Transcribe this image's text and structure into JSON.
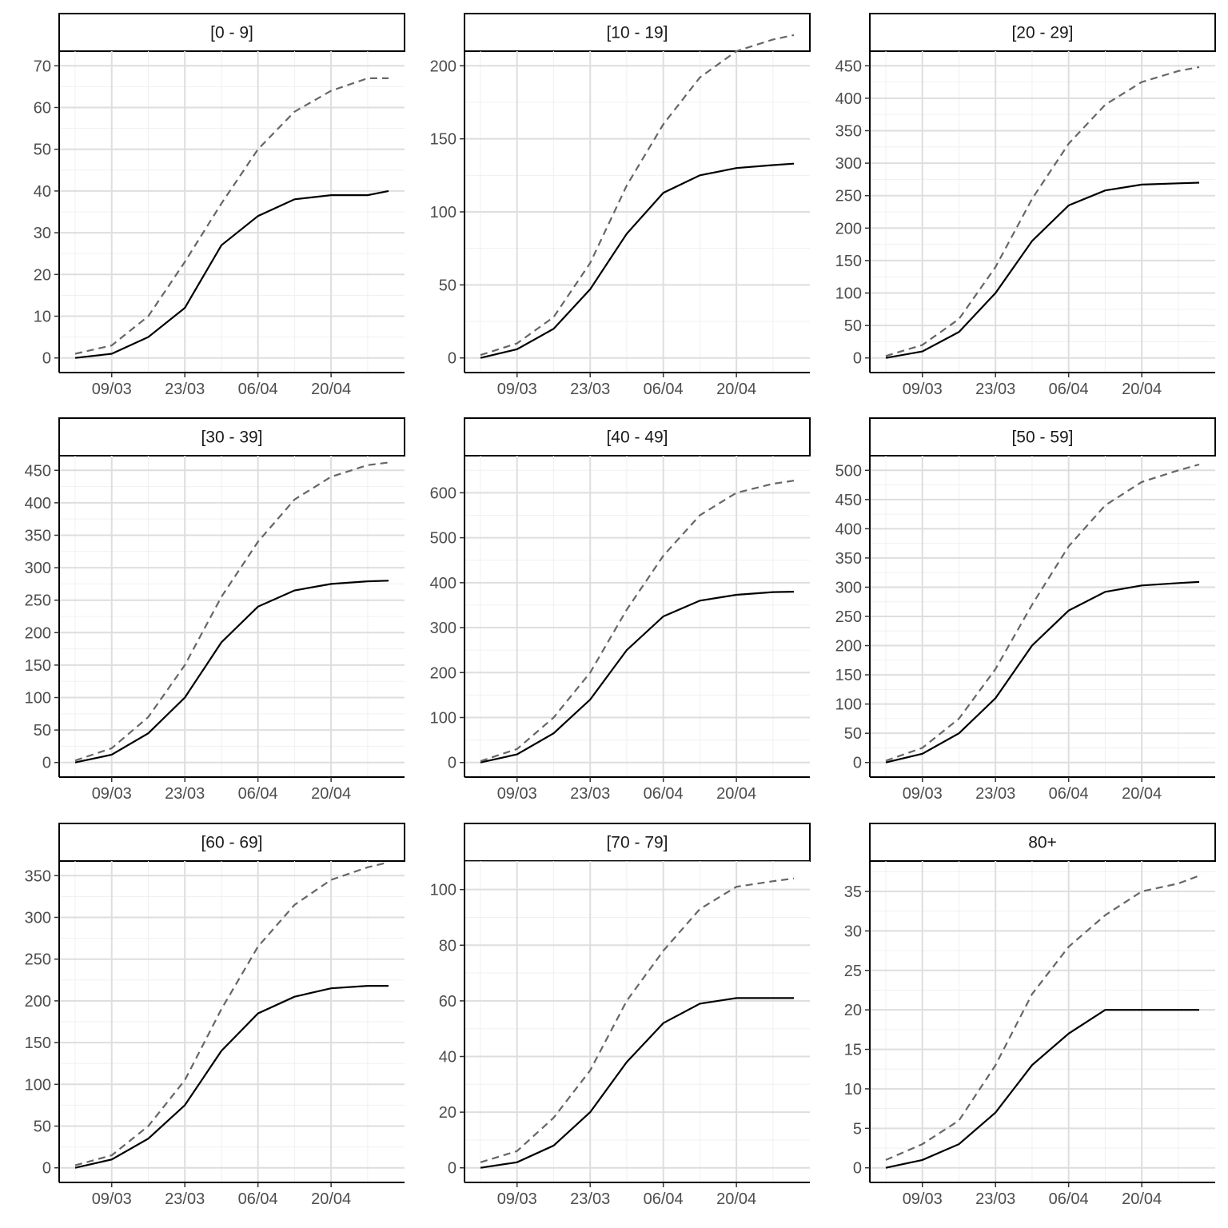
{
  "chart_data": [
    {
      "type": "line",
      "title": "[0 - 9]",
      "x": [
        "2020-03-02",
        "2020-03-09",
        "2020-03-16",
        "2020-03-23",
        "2020-03-30",
        "2020-04-06",
        "2020-04-13",
        "2020-04-20",
        "2020-04-27",
        "2020-05-01"
      ],
      "ylim": [
        0,
        70
      ],
      "yticks": [
        0,
        10,
        20,
        30,
        40,
        50,
        60,
        70
      ],
      "xticks": [
        "09/03",
        "23/03",
        "06/04",
        "20/04"
      ],
      "series": [
        {
          "style": "solid",
          "values": [
            0,
            1,
            5,
            12,
            27,
            34,
            38,
            39,
            39,
            40
          ]
        },
        {
          "style": "dashed",
          "values": [
            1,
            3,
            10,
            23,
            37,
            50,
            59,
            64,
            67,
            67
          ]
        }
      ]
    },
    {
      "type": "line",
      "title": "[10 - 19]",
      "x": [
        "2020-03-02",
        "2020-03-09",
        "2020-03-16",
        "2020-03-23",
        "2020-03-30",
        "2020-04-06",
        "2020-04-13",
        "2020-04-20",
        "2020-04-27",
        "2020-05-01"
      ],
      "ylim": [
        0,
        200
      ],
      "yticks": [
        0,
        50,
        100,
        150,
        200
      ],
      "xticks": [
        "09/03",
        "23/03",
        "06/04",
        "20/04"
      ],
      "series": [
        {
          "style": "solid",
          "values": [
            0,
            6,
            20,
            47,
            85,
            113,
            125,
            130,
            132,
            133
          ]
        },
        {
          "style": "dashed",
          "values": [
            2,
            10,
            28,
            65,
            118,
            160,
            192,
            210,
            218,
            221
          ]
        }
      ]
    },
    {
      "type": "line",
      "title": "[20 - 29]",
      "x": [
        "2020-03-02",
        "2020-03-09",
        "2020-03-16",
        "2020-03-23",
        "2020-03-30",
        "2020-04-06",
        "2020-04-13",
        "2020-04-20",
        "2020-04-27",
        "2020-05-01"
      ],
      "ylim": [
        0,
        450
      ],
      "yticks": [
        0,
        50,
        100,
        150,
        200,
        250,
        300,
        350,
        400,
        450
      ],
      "xticks": [
        "09/03",
        "23/03",
        "06/04",
        "20/04"
      ],
      "series": [
        {
          "style": "solid",
          "values": [
            0,
            10,
            40,
            100,
            180,
            235,
            258,
            267,
            269,
            270
          ]
        },
        {
          "style": "dashed",
          "values": [
            3,
            20,
            60,
            140,
            245,
            330,
            390,
            425,
            442,
            448
          ]
        }
      ]
    },
    {
      "type": "line",
      "title": "[30 - 39]",
      "x": [
        "2020-03-02",
        "2020-03-09",
        "2020-03-16",
        "2020-03-23",
        "2020-03-30",
        "2020-04-06",
        "2020-04-13",
        "2020-04-20",
        "2020-04-27",
        "2020-05-01"
      ],
      "ylim": [
        0,
        450
      ],
      "yticks": [
        0,
        50,
        100,
        150,
        200,
        250,
        300,
        350,
        400,
        450
      ],
      "xticks": [
        "09/03",
        "23/03",
        "06/04",
        "20/04"
      ],
      "series": [
        {
          "style": "solid",
          "values": [
            0,
            12,
            45,
            100,
            185,
            240,
            265,
            275,
            279,
            280
          ]
        },
        {
          "style": "dashed",
          "values": [
            3,
            22,
            70,
            150,
            255,
            340,
            405,
            440,
            458,
            462
          ]
        }
      ]
    },
    {
      "type": "line",
      "title": "[40 - 49]",
      "x": [
        "2020-03-02",
        "2020-03-09",
        "2020-03-16",
        "2020-03-23",
        "2020-03-30",
        "2020-04-06",
        "2020-04-13",
        "2020-04-20",
        "2020-04-27",
        "2020-05-01"
      ],
      "ylim": [
        0,
        650
      ],
      "yticks": [
        0,
        100,
        200,
        300,
        400,
        500,
        600
      ],
      "xticks": [
        "09/03",
        "23/03",
        "06/04",
        "20/04"
      ],
      "series": [
        {
          "style": "solid",
          "values": [
            0,
            18,
            65,
            140,
            250,
            325,
            360,
            373,
            379,
            380
          ]
        },
        {
          "style": "dashed",
          "values": [
            3,
            30,
            100,
            200,
            340,
            460,
            550,
            600,
            620,
            627
          ]
        }
      ]
    },
    {
      "type": "line",
      "title": "[50 - 59]",
      "x": [
        "2020-03-02",
        "2020-03-09",
        "2020-03-16",
        "2020-03-23",
        "2020-03-30",
        "2020-04-06",
        "2020-04-13",
        "2020-04-20",
        "2020-04-27",
        "2020-05-01"
      ],
      "ylim": [
        0,
        500
      ],
      "yticks": [
        0,
        50,
        100,
        150,
        200,
        250,
        300,
        350,
        400,
        450,
        500
      ],
      "xticks": [
        "09/03",
        "23/03",
        "06/04",
        "20/04"
      ],
      "series": [
        {
          "style": "solid",
          "values": [
            0,
            15,
            50,
            110,
            200,
            260,
            292,
            303,
            307,
            309
          ]
        },
        {
          "style": "dashed",
          "values": [
            3,
            25,
            75,
            160,
            270,
            370,
            440,
            480,
            500,
            510
          ]
        }
      ]
    },
    {
      "type": "line",
      "title": "[60 - 69]",
      "x": [
        "2020-03-02",
        "2020-03-09",
        "2020-03-16",
        "2020-03-23",
        "2020-03-30",
        "2020-04-06",
        "2020-04-13",
        "2020-04-20",
        "2020-04-27",
        "2020-05-01"
      ],
      "ylim": [
        0,
        350
      ],
      "yticks": [
        0,
        50,
        100,
        150,
        200,
        250,
        300,
        350
      ],
      "xticks": [
        "09/03",
        "23/03",
        "06/04",
        "20/04"
      ],
      "series": [
        {
          "style": "solid",
          "values": [
            0,
            10,
            35,
            75,
            140,
            185,
            205,
            215,
            218,
            218
          ]
        },
        {
          "style": "dashed",
          "values": [
            3,
            15,
            50,
            105,
            190,
            265,
            315,
            345,
            360,
            366
          ]
        }
      ]
    },
    {
      "type": "line",
      "title": "[70 - 79]",
      "x": [
        "2020-03-02",
        "2020-03-09",
        "2020-03-16",
        "2020-03-23",
        "2020-03-30",
        "2020-04-06",
        "2020-04-13",
        "2020-04-20",
        "2020-04-27",
        "2020-05-01"
      ],
      "ylim": [
        0,
        105
      ],
      "yticks": [
        0,
        20,
        40,
        60,
        80,
        100
      ],
      "xticks": [
        "09/03",
        "23/03",
        "06/04",
        "20/04"
      ],
      "series": [
        {
          "style": "solid",
          "values": [
            0,
            2,
            8,
            20,
            38,
            52,
            59,
            61,
            61,
            61
          ]
        },
        {
          "style": "dashed",
          "values": [
            2,
            6,
            18,
            35,
            60,
            78,
            93,
            101,
            103,
            104
          ]
        }
      ]
    },
    {
      "type": "line",
      "title": "80+",
      "x": [
        "2020-03-02",
        "2020-03-09",
        "2020-03-16",
        "2020-03-23",
        "2020-03-30",
        "2020-04-06",
        "2020-04-13",
        "2020-04-20",
        "2020-04-27",
        "2020-05-01"
      ],
      "ylim": [
        0,
        37
      ],
      "yticks": [
        0,
        5,
        10,
        15,
        20,
        25,
        30,
        35
      ],
      "xticks": [
        "09/03",
        "23/03",
        "06/04",
        "20/04"
      ],
      "series": [
        {
          "style": "solid",
          "values": [
            0,
            1,
            3,
            7,
            13,
            17,
            20,
            20,
            20,
            20
          ]
        },
        {
          "style": "dashed",
          "values": [
            1,
            3,
            6,
            13,
            22,
            28,
            32,
            35,
            36,
            37
          ]
        }
      ]
    }
  ]
}
